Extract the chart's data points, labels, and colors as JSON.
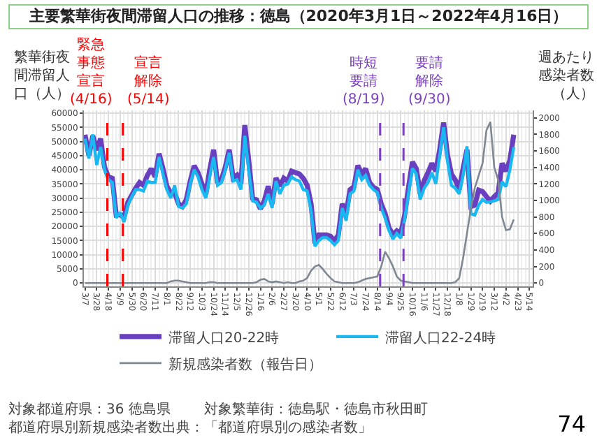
{
  "chart_data": {
    "type": "line",
    "title": "主要繁華街夜間滞留人口の推移：徳島（2020年3月1日～2022年4月16日）",
    "ylabel": "繁華街夜間滞留人口（人）",
    "y2label": "週あたり感染者数（人）",
    "x": [
      "2020-03-07",
      "2020-03-14",
      "2020-03-21",
      "2020-03-28",
      "2020-04-04",
      "2020-04-11",
      "2020-04-18",
      "2020-04-25",
      "2020-05-02",
      "2020-05-09",
      "2020-05-16",
      "2020-05-23",
      "2020-05-30",
      "2020-06-06",
      "2020-06-13",
      "2020-06-20",
      "2020-06-27",
      "2020-07-04",
      "2020-07-11",
      "2020-07-18",
      "2020-07-25",
      "2020-08-01",
      "2020-08-08",
      "2020-08-15",
      "2020-08-22",
      "2020-08-29",
      "2020-09-05",
      "2020-09-12",
      "2020-09-19",
      "2020-09-26",
      "2020-10-03",
      "2020-10-10",
      "2020-10-17",
      "2020-10-24",
      "2020-10-31",
      "2020-11-07",
      "2020-11-14",
      "2020-11-21",
      "2020-11-28",
      "2020-12-05",
      "2020-12-12",
      "2020-12-19",
      "2020-12-26",
      "2021-01-02",
      "2021-01-09",
      "2021-01-16",
      "2021-01-23",
      "2021-01-30",
      "2021-02-06",
      "2021-02-13",
      "2021-02-20",
      "2021-02-27",
      "2021-03-06",
      "2021-03-13",
      "2021-03-20",
      "2021-03-27",
      "2021-04-03",
      "2021-04-10",
      "2021-04-17",
      "2021-04-24",
      "2021-05-01",
      "2021-05-08",
      "2021-05-15",
      "2021-05-22",
      "2021-05-29",
      "2021-06-05",
      "2021-06-12",
      "2021-06-19",
      "2021-06-26",
      "2021-07-03",
      "2021-07-10",
      "2021-07-17",
      "2021-07-24",
      "2021-07-31",
      "2021-08-07",
      "2021-08-14",
      "2021-08-21",
      "2021-08-28",
      "2021-09-04",
      "2021-09-11",
      "2021-09-18",
      "2021-09-25",
      "2021-10-02",
      "2021-10-09",
      "2021-10-16",
      "2021-10-23",
      "2021-10-30",
      "2021-11-06",
      "2021-11-13",
      "2021-11-20",
      "2021-11-27",
      "2021-12-04",
      "2021-12-11",
      "2021-12-18",
      "2021-12-25",
      "2022-01-01",
      "2022-01-08",
      "2022-01-15",
      "2022-01-22",
      "2022-01-29",
      "2022-02-05",
      "2022-02-12",
      "2022-02-19",
      "2022-02-26",
      "2022-03-05",
      "2022-03-12",
      "2022-03-19",
      "2022-03-26",
      "2022-04-02",
      "2022-04-09",
      "2022-04-16"
    ],
    "series": [
      {
        "name": "滞留人口20-22時",
        "color": "#6a3fbf",
        "values": [
          52400,
          45000,
          52000,
          47000,
          51000,
          41000,
          37500,
          37000,
          24000,
          24100,
          23200,
          28500,
          31000,
          33500,
          35500,
          34500,
          38000,
          40400,
          37500,
          45700,
          40400,
          34200,
          31800,
          31800,
          28000,
          27000,
          29500,
          36000,
          41400,
          39000,
          35000,
          31300,
          40000,
          47100,
          35300,
          36500,
          41000,
          47100,
          37100,
          38100,
          35000,
          55800,
          43300,
          29900,
          29400,
          26200,
          29000,
          34200,
          28000,
          37100,
          34200,
          37000,
          36000,
          39500,
          39000,
          38500,
          37000,
          34500,
          28000,
          14000,
          17000,
          17000,
          17000,
          16500,
          14800,
          17000,
          28000,
          24500,
          33000,
          34000,
          41500,
          38500,
          40400,
          35500,
          33800,
          33000,
          28000,
          24500,
          19500,
          17000,
          18400,
          17400,
          24000,
          33700,
          42800,
          40400,
          31500,
          36100,
          39000,
          42300,
          39500,
          47100,
          56700,
          45200,
          38500,
          36400,
          33000,
          40400,
          47100,
          27000,
          27500,
          32800,
          32300,
          30500,
          28900,
          30500,
          31800,
          42300,
          39500,
          43300,
          52400
        ]
      },
      {
        "name": "滞留人口22-24時",
        "color": "#1ab8f0",
        "values": [
          51000,
          44000,
          52500,
          41700,
          48000,
          40000,
          36500,
          35500,
          23000,
          25000,
          21500,
          27500,
          30500,
          33000,
          33000,
          32500,
          36000,
          35500,
          35500,
          44500,
          38500,
          33000,
          30000,
          34500,
          27000,
          26500,
          28000,
          35000,
          40000,
          37500,
          33000,
          30000,
          37500,
          44500,
          34500,
          35500,
          40000,
          46000,
          36000,
          36500,
          33000,
          52000,
          40000,
          29000,
          28500,
          26500,
          27500,
          31500,
          26500,
          36000,
          31500,
          34500,
          35000,
          37500,
          36500,
          36000,
          33000,
          32500,
          25500,
          13000,
          15000,
          16000,
          16000,
          15000,
          13500,
          15000,
          26500,
          22000,
          31500,
          32500,
          40000,
          36500,
          38000,
          34500,
          33000,
          32000,
          26500,
          23000,
          18500,
          15500,
          17500,
          15800,
          22500,
          31500,
          40500,
          38500,
          29500,
          33500,
          35500,
          39000,
          35000,
          45000,
          55000,
          43000,
          34500,
          33500,
          31500,
          38000,
          48300,
          24500,
          24000,
          27500,
          29500,
          28500,
          28700,
          29000,
          29500,
          35800,
          34000,
          40000,
          48000
        ]
      },
      {
        "name": "新規感染者数（報告日）",
        "color": "#7f8792",
        "axis": "y2",
        "values": [
          0,
          0,
          0,
          0,
          0,
          0,
          0,
          0,
          0,
          0,
          0,
          0,
          0,
          0,
          0,
          0,
          0,
          0,
          0,
          0,
          0,
          0,
          20,
          30,
          30,
          20,
          10,
          0,
          0,
          0,
          0,
          0,
          10,
          10,
          0,
          0,
          0,
          0,
          0,
          0,
          0,
          0,
          0,
          0,
          10,
          40,
          50,
          20,
          10,
          20,
          10,
          0,
          10,
          0,
          0,
          20,
          30,
          60,
          150,
          200,
          220,
          170,
          110,
          60,
          20,
          10,
          0,
          0,
          0,
          0,
          10,
          30,
          50,
          60,
          70,
          80,
          200,
          380,
          300,
          200,
          80,
          30,
          20,
          10,
          0,
          0,
          0,
          0,
          0,
          0,
          0,
          0,
          0,
          0,
          0,
          10,
          60,
          300,
          600,
          900,
          1150,
          1300,
          1450,
          1850,
          1950,
          1400,
          1250,
          800,
          640,
          650,
          770
        ]
      }
    ],
    "xlim": [
      "2020-03-05",
      "2022-05-20"
    ],
    "xticks": [
      {
        "value": "2020-03-07",
        "label": "3/7"
      },
      {
        "value": "2020-03-28",
        "label": "3/28"
      },
      {
        "value": "2020-04-18",
        "label": "4/18"
      },
      {
        "value": "2020-05-09",
        "label": "5/9"
      },
      {
        "value": "2020-05-30",
        "label": "5/30"
      },
      {
        "value": "2020-06-20",
        "label": "6/20"
      },
      {
        "value": "2020-07-11",
        "label": "7/11"
      },
      {
        "value": "2020-08-01",
        "label": "8/1"
      },
      {
        "value": "2020-08-22",
        "label": "8/22"
      },
      {
        "value": "2020-09-12",
        "label": "9/12"
      },
      {
        "value": "2020-10-03",
        "label": "10/3"
      },
      {
        "value": "2020-10-24",
        "label": "10/24"
      },
      {
        "value": "2020-11-14",
        "label": "11/14"
      },
      {
        "value": "2020-12-05",
        "label": "12/5"
      },
      {
        "value": "2020-12-26",
        "label": "12/26"
      },
      {
        "value": "2021-01-16",
        "label": "1/16"
      },
      {
        "value": "2021-02-06",
        "label": "2/6"
      },
      {
        "value": "2021-02-27",
        "label": "2/27"
      },
      {
        "value": "2021-03-20",
        "label": "3/20"
      },
      {
        "value": "2021-04-10",
        "label": "4/10"
      },
      {
        "value": "2021-05-01",
        "label": "5/1"
      },
      {
        "value": "2021-05-22",
        "label": "5/22"
      },
      {
        "value": "2021-06-12",
        "label": "6/12"
      },
      {
        "value": "2021-07-03",
        "label": "7/3"
      },
      {
        "value": "2021-07-24",
        "label": "7/24"
      },
      {
        "value": "2021-08-14",
        "label": "8/14"
      },
      {
        "value": "2021-09-04",
        "label": "9/4"
      },
      {
        "value": "2021-09-25",
        "label": "9/25"
      },
      {
        "value": "2021-10-16",
        "label": "10/16"
      },
      {
        "value": "2021-11-06",
        "label": "11/6"
      },
      {
        "value": "2021-11-27",
        "label": "11/27"
      },
      {
        "value": "2021-12-18",
        "label": "12/18"
      },
      {
        "value": "2022-01-08",
        "label": "1/8"
      },
      {
        "value": "2022-01-29",
        "label": "1/29"
      },
      {
        "value": "2022-02-19",
        "label": "2/19"
      },
      {
        "value": "2022-03-12",
        "label": "3/12"
      },
      {
        "value": "2022-04-02",
        "label": "4/2"
      },
      {
        "value": "2022-04-23",
        "label": "4/23"
      },
      {
        "value": "2022-05-14",
        "label": "5/14"
      }
    ],
    "ylim": [
      -1200,
      61000
    ],
    "yticks": [
      0,
      5000,
      10000,
      15000,
      20000,
      25000,
      30000,
      35000,
      40000,
      45000,
      50000,
      55000,
      60000
    ],
    "y2lim": [
      -40,
      2090
    ],
    "y2ticks": [
      0,
      200,
      400,
      600,
      800,
      1000,
      1200,
      1400,
      1600,
      1800,
      2000
    ],
    "ref_lines": [
      {
        "axis": "x",
        "value": "2020-04-16",
        "label": "緊急事態宣言(4/16)",
        "color": "#ff0000",
        "line_style": "dashed"
      },
      {
        "axis": "x",
        "value": "2020-05-14",
        "label": "宣言解除(5/14)",
        "color": "#ff0000",
        "line_style": "dashed"
      },
      {
        "axis": "x",
        "value": "2021-08-19",
        "label": "時短要請(8/19)",
        "color": "#7b3fc0",
        "line_style": "dashed"
      },
      {
        "axis": "x",
        "value": "2021-09-30",
        "label": "要請解除(9/30)",
        "color": "#7b3fc0",
        "line_style": "dashed"
      }
    ],
    "grid": true,
    "legend": "bottom",
    "line_style": "solid",
    "annotations": [
      "対象都道府県：36 徳島県",
      "対象繁華街：徳島駅・徳島市秋田町",
      "都道府県別新規感染者数出典：「都道府県別の感染者数」",
      "74"
    ]
  }
}
